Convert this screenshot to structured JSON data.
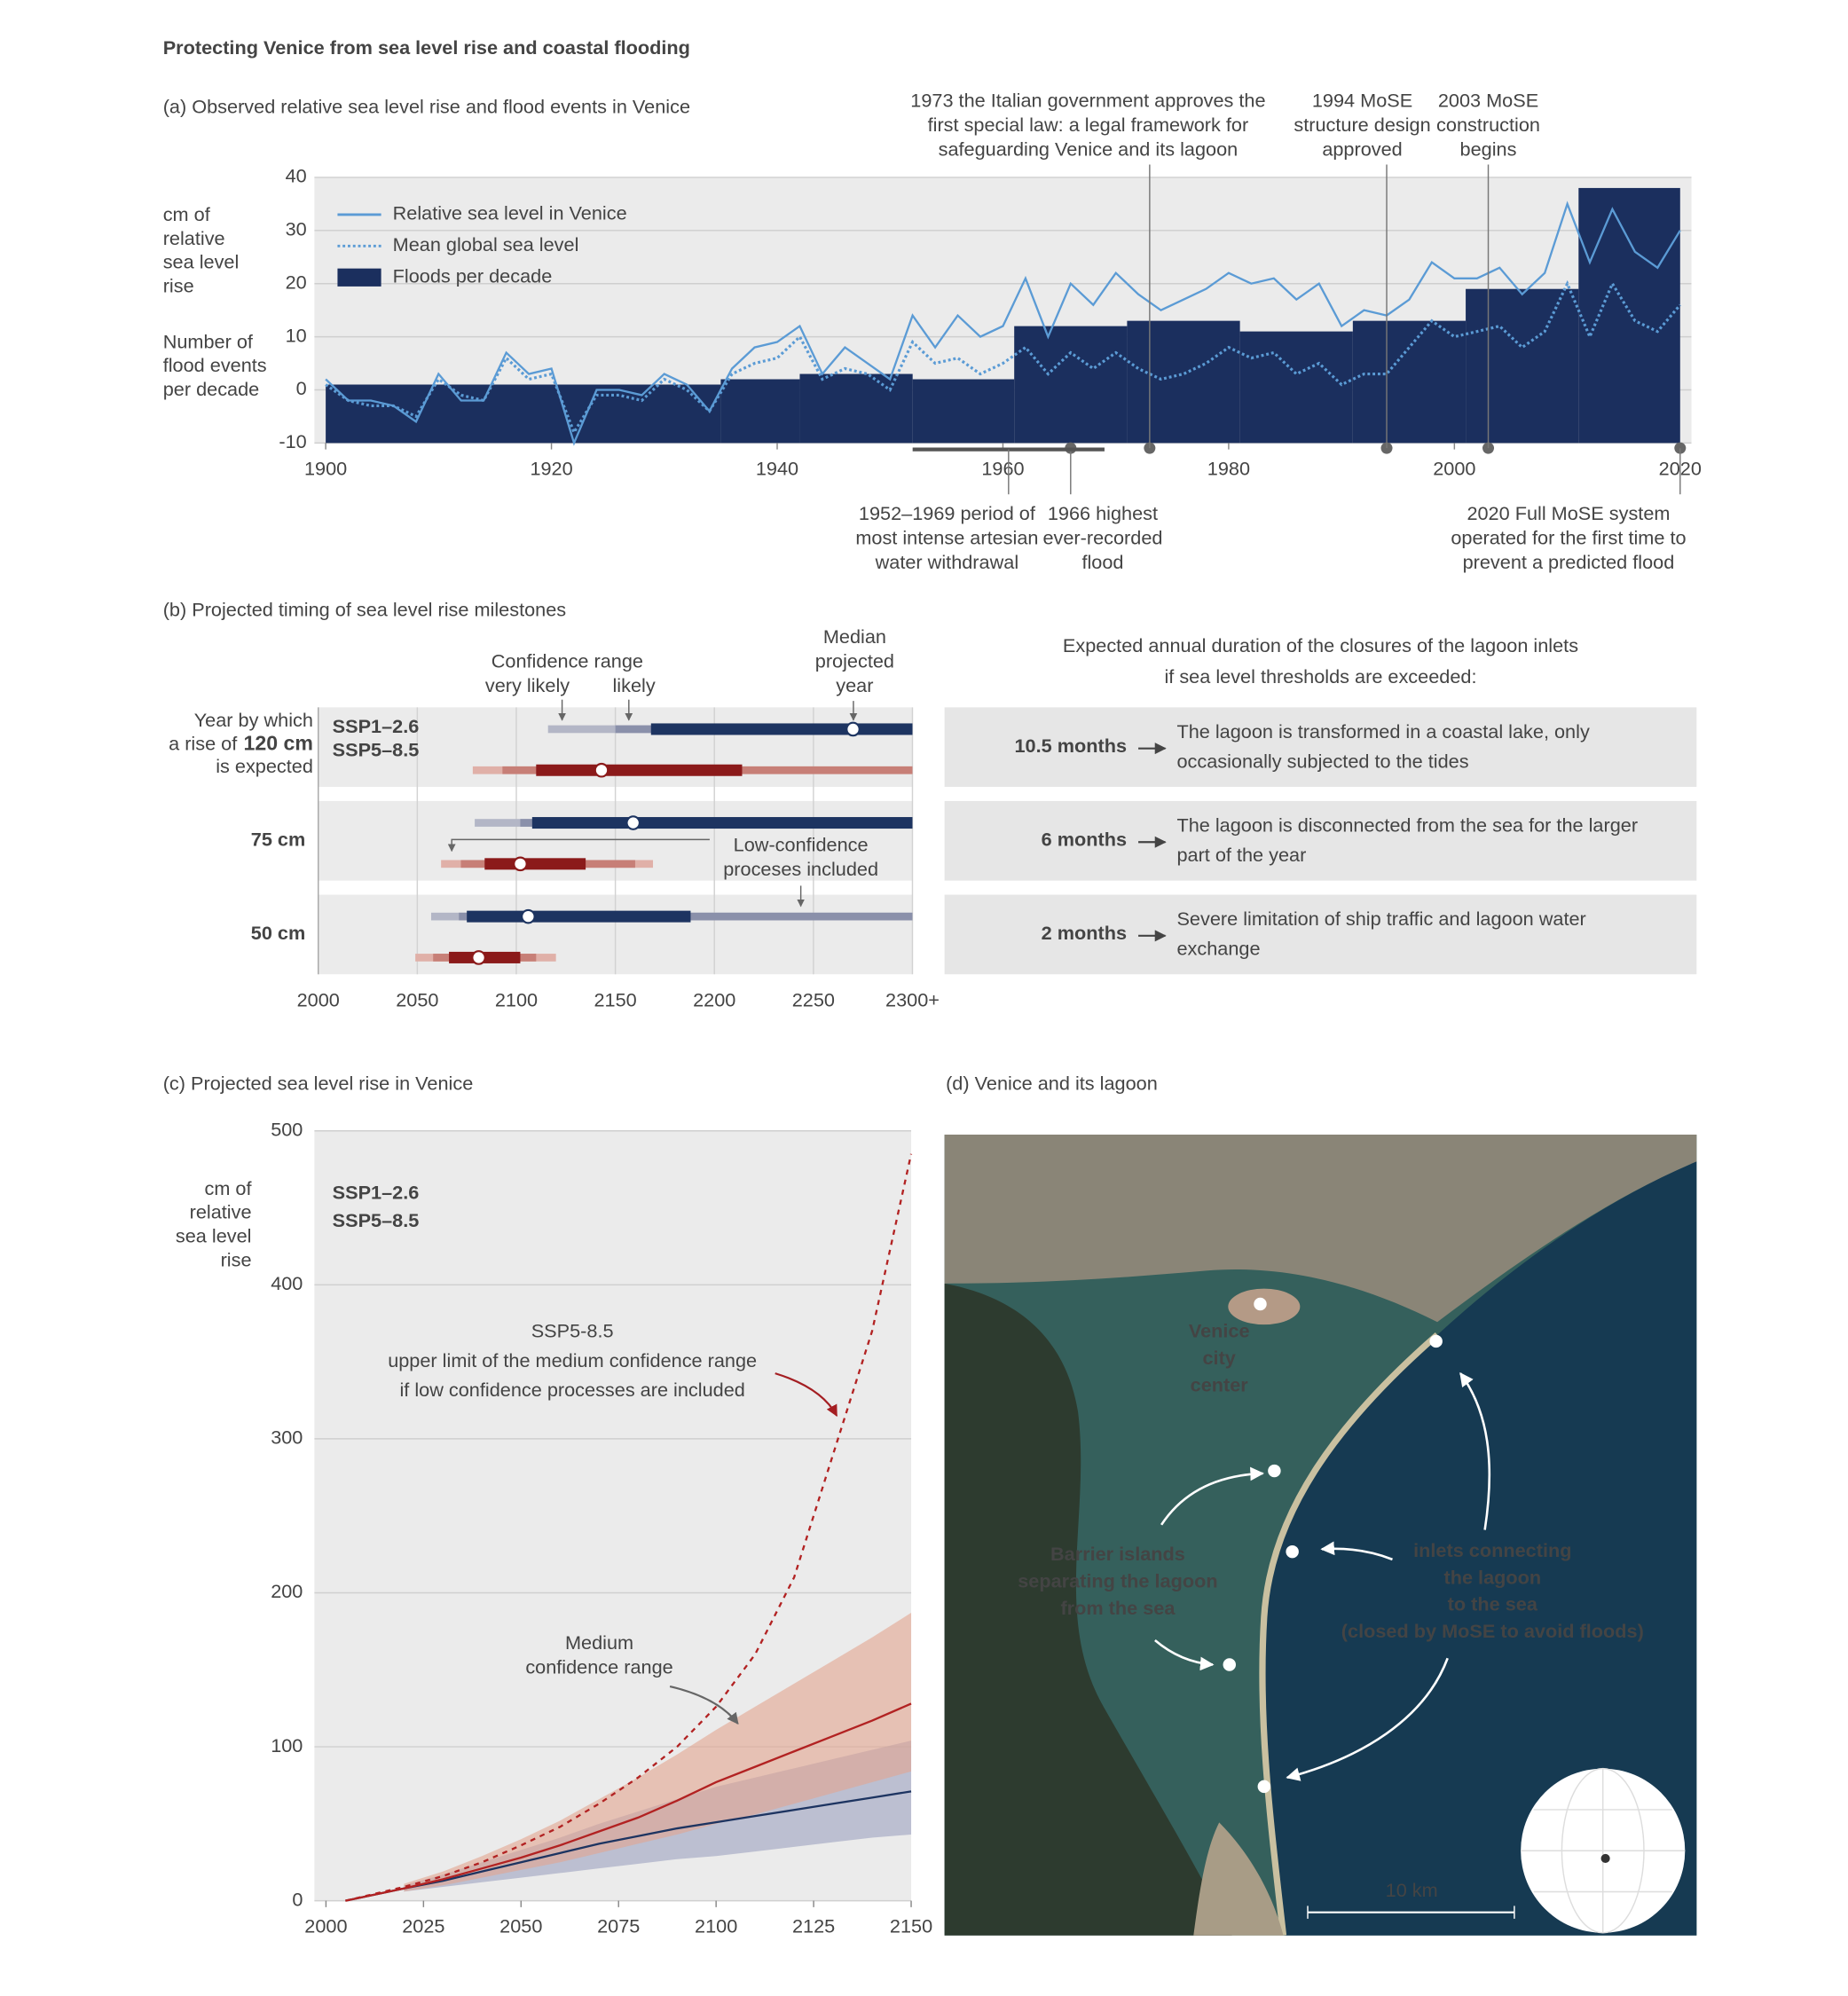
{
  "title": "Protecting Venice from sea level rise and coastal flooding",
  "chart_data": [
    {
      "type": "line",
      "title": "(a) Observed relative sea level rise and flood events in Venice",
      "y_label": [
        "cm of",
        "relative",
        "sea level",
        "rise"
      ],
      "y2_label": [
        "Number of",
        "flood events",
        "per decade"
      ],
      "x": [
        1900,
        1902,
        1904,
        1906,
        1908,
        1910,
        1912,
        1914,
        1916,
        1918,
        1920,
        1922,
        1924,
        1926,
        1928,
        1930,
        1932,
        1934,
        1936,
        1938,
        1940,
        1942,
        1944,
        1946,
        1948,
        1950,
        1952,
        1954,
        1956,
        1958,
        1960,
        1962,
        1964,
        1966,
        1968,
        1970,
        1972,
        1974,
        1976,
        1978,
        1980,
        1982,
        1984,
        1986,
        1988,
        1990,
        1992,
        1994,
        1996,
        1998,
        2000,
        2002,
        2004,
        2006,
        2008,
        2010,
        2012,
        2014,
        2016,
        2018,
        2020
      ],
      "series": [
        {
          "name": "Relative sea level in Venice",
          "color": "#5b9bd5",
          "style": "solid",
          "values": [
            2,
            -2,
            -2,
            -3,
            -6,
            3,
            -2,
            -2,
            7,
            3,
            4,
            -10,
            0,
            0,
            -1,
            3,
            1,
            -4,
            4,
            8,
            9,
            12,
            3,
            8,
            5,
            2,
            14,
            8,
            14,
            10,
            12,
            21,
            10,
            20,
            16,
            22,
            18,
            15,
            17,
            19,
            22,
            20,
            21,
            17,
            20,
            12,
            15,
            14,
            17,
            24,
            21,
            21,
            23,
            18,
            22,
            35,
            24,
            34,
            26,
            23,
            30
          ]
        },
        {
          "name": "Mean global sea level",
          "color": "#5b9bd5",
          "style": "dotted",
          "values": [
            1,
            -2,
            -3,
            -3,
            -5,
            2,
            -1,
            -2,
            6,
            2,
            3,
            -8,
            -1,
            -1,
            -2,
            2,
            0,
            -4,
            3,
            5,
            6,
            10,
            2,
            4,
            3,
            0,
            9,
            5,
            6,
            3,
            5,
            8,
            3,
            7,
            4,
            7,
            4,
            2,
            3,
            5,
            8,
            6,
            7,
            3,
            5,
            1,
            3,
            3,
            8,
            13,
            10,
            11,
            12,
            8,
            11,
            20,
            10,
            20,
            13,
            11,
            16
          ]
        }
      ],
      "bars": {
        "name": "Floods per decade",
        "color": "#1b2f5e",
        "bins": [
          1900,
          1935,
          1942,
          1952,
          1961,
          1971,
          1981,
          1991,
          2001,
          2011,
          2020
        ],
        "values": [
          1,
          2,
          3,
          2,
          12,
          13,
          11,
          13,
          19,
          38
        ]
      },
      "xlim": [
        1899,
        2021
      ],
      "ylim": [
        -10,
        40
      ],
      "xticks": [
        1900,
        1920,
        1940,
        1960,
        1980,
        2000,
        2020
      ],
      "yticks": [
        -10,
        0,
        10,
        20,
        30,
        40
      ],
      "grid": true,
      "events": [
        {
          "x": 1973,
          "position": "above",
          "text": [
            "1973 the Italian government approves the",
            "first special law: a legal framework for",
            "safeguarding Venice and its lagoon"
          ]
        },
        {
          "x": 1994,
          "position": "above",
          "text": [
            "1994 MoSE",
            "structure design",
            "approved"
          ]
        },
        {
          "x": 2003,
          "position": "above",
          "text": [
            "2003 MoSE",
            "construction",
            "begins"
          ]
        },
        {
          "x": 1966,
          "position": "below",
          "text": [
            "1966 highest",
            "ever-recorded",
            "flood"
          ]
        },
        {
          "x": 2020,
          "position": "below",
          "text": [
            "2020 Full MoSE system",
            "operated for the first time to",
            "prevent a predicted flood"
          ]
        }
      ],
      "period": {
        "x": [
          1952,
          1969
        ],
        "text": [
          "1952–1969 period of",
          "most intense artesian",
          "water withdrawal"
        ]
      }
    },
    {
      "type": "range",
      "title": "(b) Projected timing of sea level rise milestones",
      "caption_top": "Year by which",
      "caption_prefix": "a rise of",
      "caption_bottom": "is expected",
      "thresholds": [
        "120 cm",
        "75 cm",
        "50 cm"
      ],
      "series": [
        {
          "name": "SSP1–2.6",
          "color": "#1d3461",
          "mid_color": "#8a90aa",
          "light_color": "#b3b6c6",
          "low_confidence": [
            [
              2116,
              2300
            ],
            [
              2079,
              2300
            ],
            [
              2057,
              2300
            ]
          ],
          "very_likely": [
            [
              2150,
              2300
            ],
            [
              2102,
              2300
            ],
            [
              2071,
              2300
            ]
          ],
          "likely": [
            [
              2168,
              2300
            ],
            [
              2108,
              2300
            ],
            [
              2075,
              2188
            ]
          ],
          "median": [
            2270,
            2159,
            2106
          ]
        },
        {
          "name": "SSP5–8.5",
          "color": "#8b1a1a",
          "mid_color": "#c77f77",
          "light_color": "#e0b0a8",
          "low_confidence": [
            [
              2078,
              2300
            ],
            [
              2062,
              2169
            ],
            [
              2049,
              2120
            ]
          ],
          "very_likely": [
            [
              2093,
              2300
            ],
            [
              2072,
              2160
            ],
            [
              2058,
              2110
            ]
          ],
          "likely": [
            [
              2110,
              2214
            ],
            [
              2084,
              2135
            ],
            [
              2066,
              2102
            ]
          ],
          "median": [
            2143,
            2102,
            2081
          ]
        }
      ],
      "xlim": [
        2000,
        2300
      ],
      "xticks": [
        2000,
        2050,
        2100,
        2150,
        2200,
        2250,
        {
          "value": 2300,
          "label": "2300+"
        }
      ],
      "confidence_label": "Confidence range",
      "very_likely_label": "very likely",
      "likely_label": "likely",
      "median_label": [
        "Median",
        "projected",
        "year"
      ],
      "low_confidence_label": [
        "Low-confidence",
        "proceses included"
      ]
    },
    {
      "type": "area",
      "title": "(c) Projected sea level rise in Venice",
      "y_label": [
        "cm of",
        "relative",
        "sea level",
        "rise"
      ],
      "x": [
        2005,
        2020,
        2030,
        2040,
        2050,
        2060,
        2070,
        2080,
        2090,
        2100,
        2110,
        2120,
        2130,
        2140,
        2150
      ],
      "series": [
        {
          "name": "SSP1–2.6",
          "color": "#1d3461",
          "band_color": "#9ca1bf",
          "values": [
            0,
            8,
            13,
            19,
            25,
            31,
            37,
            42,
            47,
            51,
            55,
            59,
            63,
            67,
            71
          ],
          "band_low": [
            null,
            6,
            9,
            12,
            15,
            18,
            21,
            24,
            27,
            29,
            32,
            35,
            38,
            41,
            43
          ],
          "band_high": [
            null,
            10,
            17,
            25,
            33,
            41,
            50,
            58,
            66,
            74,
            80,
            86,
            92,
            98,
            104
          ]
        },
        {
          "name": "SSP5–8.5",
          "color": "#b22222",
          "band_color": "#e3a58f",
          "values": [
            0,
            8,
            14,
            21,
            28,
            36,
            45,
            54,
            65,
            77,
            87,
            97,
            107,
            117,
            128
          ],
          "band_low": [
            null,
            6,
            10,
            15,
            20,
            25,
            31,
            37,
            43,
            50,
            56,
            63,
            70,
            77,
            84
          ],
          "band_high": [
            null,
            11,
            19,
            29,
            40,
            52,
            66,
            80,
            95,
            111,
            126,
            141,
            156,
            171,
            187
          ]
        }
      ],
      "upper_limit": {
        "color": "#b22222",
        "style": "dashed",
        "values": [
          0,
          9,
          16,
          25,
          36,
          48,
          63,
          80,
          100,
          126,
          160,
          210,
          290,
          370,
          485
        ],
        "text": [
          "SSP5-8.5",
          "upper limit of the medium confidence range",
          "if low confidence processes are included"
        ]
      },
      "band_label": [
        "Medium",
        "confidence range"
      ],
      "xlim": [
        2000,
        2150
      ],
      "ylim": [
        0,
        500
      ],
      "xticks": [
        2000,
        2025,
        2050,
        2075,
        2100,
        2125,
        2150
      ],
      "yticks": [
        0,
        100,
        200,
        300,
        400,
        500
      ],
      "grid": true
    }
  ],
  "closures": {
    "title": [
      "Expected annual duration of the closures of the lagoon inlets",
      "if sea level thresholds are exceeded:"
    ],
    "rows": [
      {
        "duration": "10.5 months",
        "text": [
          "The lagoon is transformed in a coastal lake, only",
          "occasionally subjected to the tides"
        ]
      },
      {
        "duration": "6 months",
        "text": [
          "The lagoon is disconnected from the sea for the larger",
          "part of the year"
        ]
      },
      {
        "duration": "2 months",
        "text": [
          "Severe limitation of ship traffic and lagoon water",
          "exchange"
        ]
      }
    ]
  },
  "map": {
    "title": "(d) Venice and its lagoon",
    "city": [
      "Venice",
      "city",
      "center"
    ],
    "barrier": [
      "Barrier islands",
      "separating the lagoon",
      "from the sea"
    ],
    "inlets": [
      "inlets  connecting",
      "the lagoon",
      "to the sea",
      "(closed by MoSE to avoid floods)"
    ],
    "scale": "10 km"
  }
}
